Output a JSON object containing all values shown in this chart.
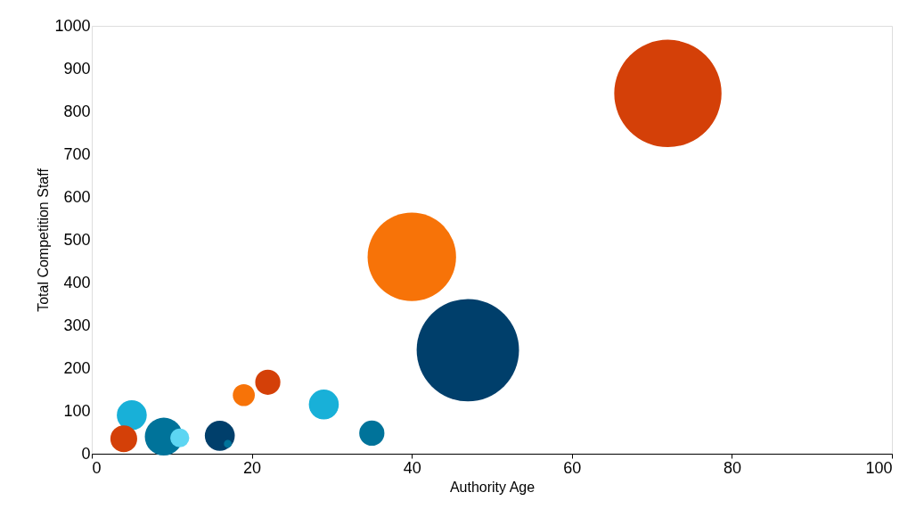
{
  "chart_data": {
    "type": "bubble",
    "xlabel": "Authority Age",
    "ylabel": "Total Competition Staff",
    "x": [
      72,
      40,
      47,
      29,
      35,
      22,
      19,
      5,
      4,
      9,
      11,
      16,
      17
    ],
    "values": [
      842,
      460,
      242,
      115,
      48,
      167,
      137,
      90,
      35,
      40,
      37,
      42,
      23
    ],
    "sizes": [
      1,
      0.68,
      0.91,
      0.078,
      0.055,
      0.055,
      0.042,
      0.078,
      0.0625,
      0.125,
      0.031,
      0.078,
      0.0054
    ],
    "colors": [
      "#d44008",
      "#f77308",
      "#003f6b",
      "#18b0d8",
      "#00739a",
      "#d44008",
      "#f77308",
      "#18b0d8",
      "#d44008",
      "#00739a",
      "#5dd5f2",
      "#003f6b",
      "#00739a"
    ],
    "xlim": [
      0,
      100
    ],
    "xticks": [
      0,
      20,
      40,
      60,
      80,
      100
    ],
    "ylim": [
      0,
      1000
    ],
    "yticks": [
      0,
      100,
      200,
      300,
      400,
      500,
      600,
      700,
      800,
      900,
      1000
    ],
    "grid": false,
    "legend": false
  }
}
